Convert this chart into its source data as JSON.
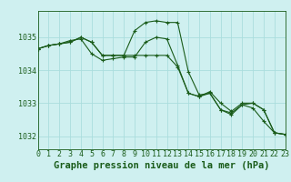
{
  "background_color": "#cff0f0",
  "plot_bg_color": "#cff0f0",
  "grid_color": "#aadddd",
  "line_color": "#1a5c1a",
  "title": "Graphe pression niveau de la mer (hPa)",
  "title_fontsize": 7.5,
  "tick_fontsize": 6.0,
  "xlim": [
    0,
    23
  ],
  "ylim": [
    1031.6,
    1035.8
  ],
  "yticks": [
    1032,
    1033,
    1034,
    1035
  ],
  "xticks": [
    0,
    1,
    2,
    3,
    4,
    5,
    6,
    7,
    8,
    9,
    10,
    11,
    12,
    13,
    14,
    15,
    16,
    17,
    18,
    19,
    20,
    21,
    22,
    23
  ],
  "series": [
    [
      1034.65,
      1034.75,
      1034.8,
      1034.85,
      1035.0,
      1034.85,
      1034.45,
      1034.45,
      1034.45,
      1035.2,
      1035.45,
      1035.5,
      1035.45,
      1035.45,
      1033.95,
      1033.25,
      1033.3,
      1032.8,
      1032.65,
      1032.95,
      1032.85,
      1032.45,
      1032.1,
      1032.05
    ],
    [
      1034.65,
      1034.75,
      1034.8,
      1034.9,
      1034.95,
      1034.5,
      1034.3,
      1034.35,
      1034.4,
      1034.4,
      1034.85,
      1035.0,
      1034.95,
      1034.15,
      1033.3,
      1033.2,
      1033.35,
      1033.0,
      1032.75,
      1033.0,
      1033.0,
      1032.8,
      1032.1,
      1032.05
    ],
    [
      1034.65,
      1034.75,
      1034.8,
      1034.85,
      1035.0,
      1034.85,
      1034.45,
      1034.45,
      1034.45,
      1034.45,
      1034.45,
      1034.45,
      1034.45,
      1034.1,
      1033.3,
      1033.2,
      1033.3,
      1032.8,
      1032.7,
      1032.95,
      1033.0,
      1032.8,
      1032.1,
      1032.05
    ]
  ]
}
